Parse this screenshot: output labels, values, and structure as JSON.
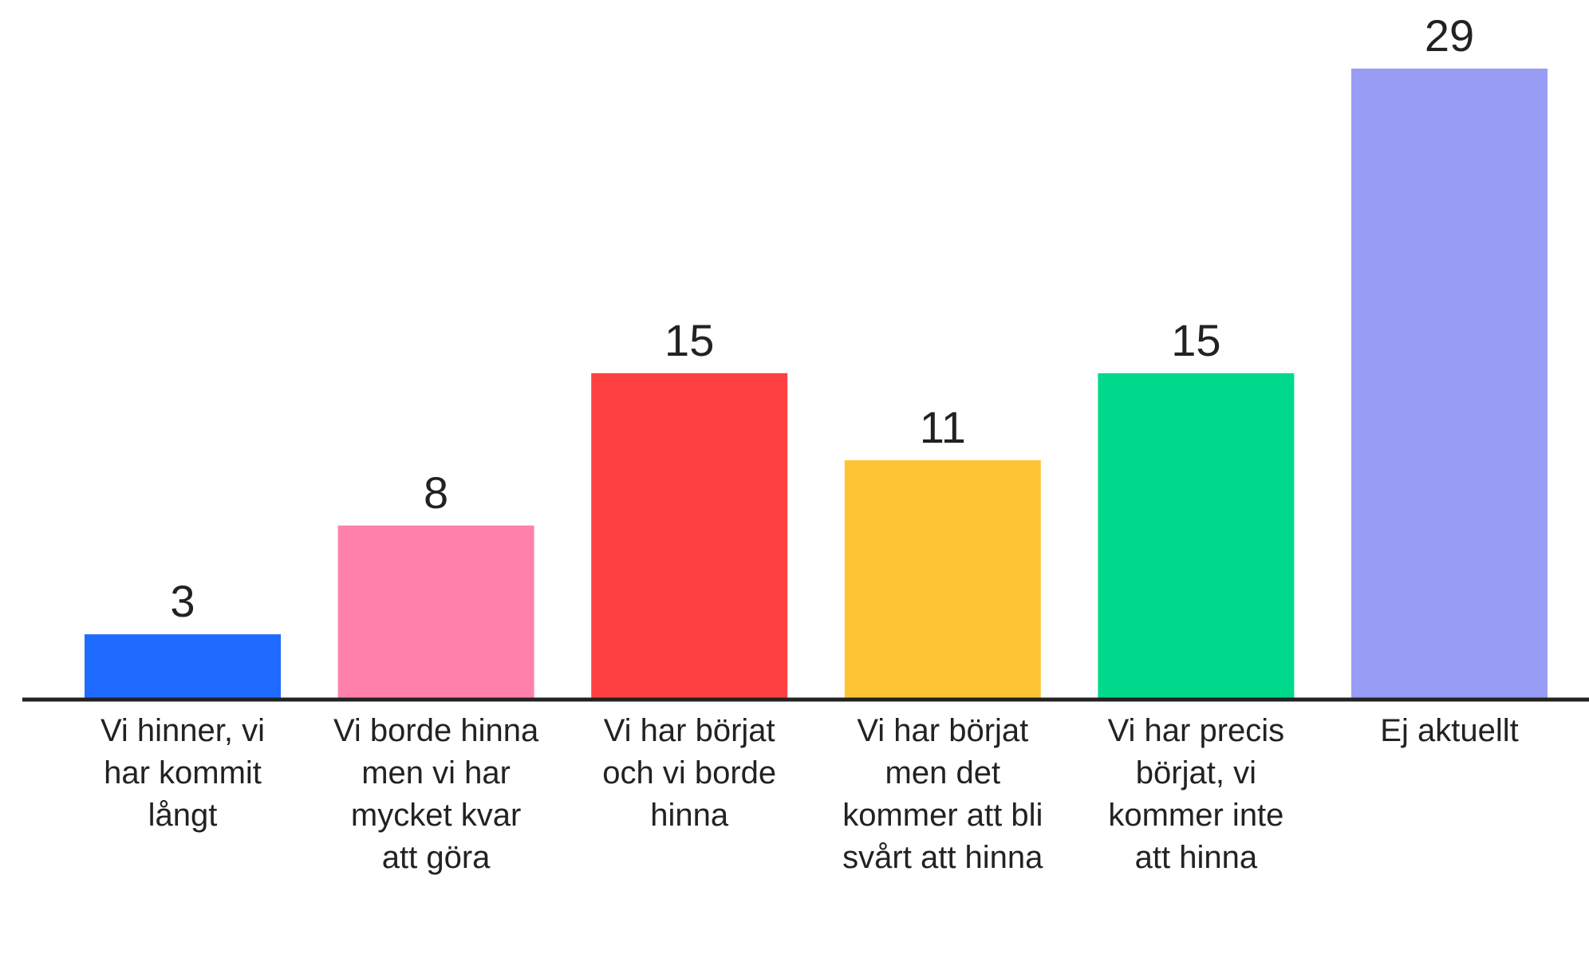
{
  "chart_data": {
    "type": "bar",
    "categories": [
      "Vi hinner, vi har kommit långt",
      "Vi borde hinna men vi har mycket kvar att göra",
      "Vi har börjat och vi borde hinna",
      "Vi har börjat men det kommer att bli svårt att hinna",
      "Vi har precis börjat, vi kommer inte att hinna",
      "Ej aktuellt"
    ],
    "values": [
      3,
      8,
      15,
      11,
      15,
      29
    ],
    "colors": [
      "#1f6bff",
      "#ff80ab",
      "#ff4040",
      "#ffc436",
      "#00d98c",
      "#999cf5"
    ]
  }
}
